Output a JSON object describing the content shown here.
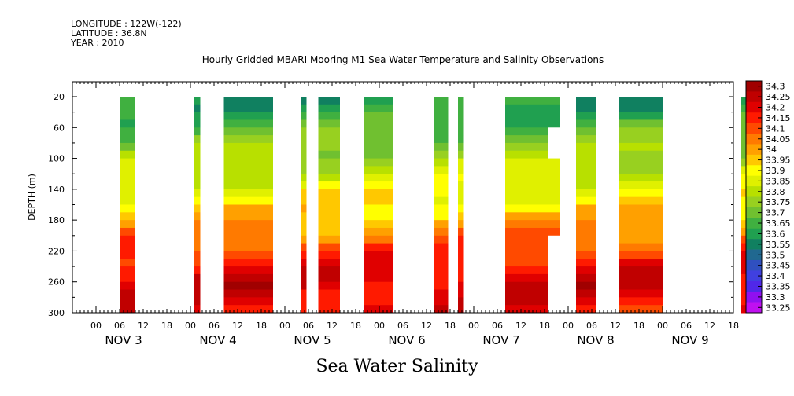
{
  "header": {
    "longitude": "LONGITUDE : 122W(-122)",
    "latitude": "LATITUDE : 36.8N",
    "year": "YEAR : 2010"
  },
  "chart_data": {
    "type": "heatmap",
    "title": "Hourly Gridded MBARI Mooring M1 Sea Water Temperature and Salinity Observations",
    "xlabel": "Sea Water Salinity",
    "ylabel": "DEPTH (m)",
    "ylim": [
      300,
      0
    ],
    "y_ticks": [
      20,
      60,
      100,
      140,
      180,
      220,
      260,
      300
    ],
    "x_hour_ticks": [
      "00",
      "06",
      "12",
      "18",
      "00",
      "06",
      "12",
      "18",
      "00",
      "06",
      "12",
      "18",
      "00",
      "06",
      "12",
      "18",
      "00",
      "06",
      "12",
      "18",
      "00",
      "06",
      "12",
      "18",
      "00",
      "06",
      "12",
      "18"
    ],
    "x_day_labels": [
      "NOV 3",
      "NOV 4",
      "NOV 5",
      "NOV 6",
      "NOV 7",
      "NOV 8",
      "NOV 9"
    ],
    "colorbar_levels": [
      "34.3",
      "34.25",
      "34.2",
      "34.15",
      "34.1",
      "34.05",
      "34",
      "33.95",
      "33.9",
      "33.85",
      "33.8",
      "33.75",
      "33.7",
      "33.65",
      "33.6",
      "33.55",
      "33.5",
      "33.45",
      "33.4",
      "33.35",
      "33.3",
      "33.25"
    ],
    "colorbar_colors": [
      "#a00000",
      "#c00000",
      "#e00000",
      "#ff1a00",
      "#ff4a00",
      "#ff7a00",
      "#ffa000",
      "#ffc800",
      "#ffff00",
      "#e0f000",
      "#b8e000",
      "#98d020",
      "#70c030",
      "#40b040",
      "#20a050",
      "#108060",
      "#206890",
      "#3050c0",
      "#4040e0",
      "#5028e8",
      "#9010f0",
      "#c010f0"
    ],
    "data_segments_hours": [
      [
        6,
        10
      ],
      [
        25,
        26.5
      ],
      [
        32.5,
        45
      ],
      [
        52,
        53.5
      ],
      [
        56.5,
        62
      ],
      [
        68,
        75.5
      ],
      [
        86,
        89.5
      ],
      [
        92,
        93.5
      ],
      [
        104,
        118
      ],
      [
        122,
        127
      ],
      [
        133,
        144
      ],
      [
        164,
        167
      ]
    ],
    "salinity_profile_depth": [
      20,
      60,
      100,
      140,
      180,
      220,
      260,
      300
    ],
    "salinity_profile_values": [
      33.6,
      33.7,
      33.8,
      33.9,
      34.0,
      34.15,
      34.25,
      34.2
    ],
    "data_gaps": [
      {
        "x": [
          115,
          118
        ],
        "y": [
          60,
          100
        ]
      },
      {
        "x": [
          115,
          118
        ],
        "y": [
          200,
          300
        ]
      }
    ]
  }
}
